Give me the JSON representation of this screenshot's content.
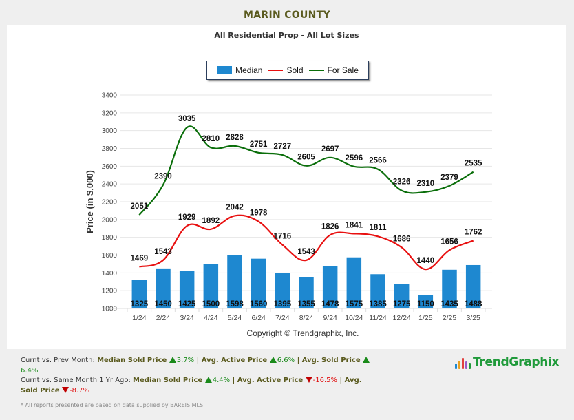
{
  "page": {
    "title": "MARIN COUNTY",
    "subtitle": "All Residential Prop - All Lot Sizes",
    "copyright": "Copyright © Trendgraphix, Inc.",
    "logo_text": "TrendGraphix",
    "note": "* All reports presented are based on data supplied by BAREIS MLS."
  },
  "legend": [
    {
      "label": "Median",
      "type": "bar",
      "color": "#1e88d0"
    },
    {
      "label": "Sold",
      "type": "line",
      "color": "#e81010"
    },
    {
      "label": "For Sale",
      "type": "line",
      "color": "#0a6e0a"
    }
  ],
  "summary": {
    "prev_month": {
      "label": "Curnt vs. Prev Month:",
      "items": [
        {
          "name": "Median Sold Price",
          "value": "3.7%",
          "dir": "up"
        },
        {
          "name": "Avg. Active Price",
          "value": "6.6%",
          "dir": "up"
        },
        {
          "name": "Avg. Sold Price",
          "value": "6.4%",
          "dir": "up"
        }
      ]
    },
    "year_ago": {
      "label": "Curnt vs. Same Month 1 Yr Ago:",
      "items": [
        {
          "name": "Median Sold Price",
          "value": "4.4%",
          "dir": "up"
        },
        {
          "name": "Avg. Active Price",
          "value": "-16.5%",
          "dir": "down"
        },
        {
          "name": "Avg. Sold Price",
          "value": "-8.7%",
          "dir": "down"
        }
      ]
    },
    "separator": "|"
  },
  "chart_data": {
    "type": "bar",
    "title": "All Residential Prop - All Lot Sizes",
    "xlabel": "",
    "ylabel": "Price (in $,000)",
    "ylim": [
      1000,
      3400
    ],
    "yticks": [
      1000,
      1200,
      1400,
      1600,
      1800,
      2000,
      2200,
      2400,
      2600,
      2800,
      3000,
      3200,
      3400
    ],
    "grid": true,
    "legend_position": "top-center",
    "categories": [
      "1/24",
      "2/24",
      "3/24",
      "4/24",
      "5/24",
      "6/24",
      "7/24",
      "8/24",
      "9/24",
      "10/24",
      "11/24",
      "12/24",
      "1/25",
      "2/25",
      "3/25"
    ],
    "series": [
      {
        "name": "Median",
        "type": "bar",
        "color": "#1e88d0",
        "values": [
          1325,
          1450,
          1425,
          1500,
          1598,
          1560,
          1395,
          1355,
          1478,
          1575,
          1385,
          1275,
          1150,
          1435,
          1488
        ]
      },
      {
        "name": "Sold",
        "type": "line",
        "color": "#e81010",
        "values": [
          1469,
          1543,
          1929,
          1892,
          2042,
          1978,
          1716,
          1543,
          1826,
          1841,
          1811,
          1686,
          1440,
          1656,
          1762
        ]
      },
      {
        "name": "For Sale",
        "type": "line",
        "color": "#0a6e0a",
        "values": [
          2051,
          2390,
          3035,
          2810,
          2828,
          2751,
          2727,
          2605,
          2697,
          2596,
          2566,
          2326,
          2310,
          2379,
          2535
        ]
      }
    ]
  }
}
